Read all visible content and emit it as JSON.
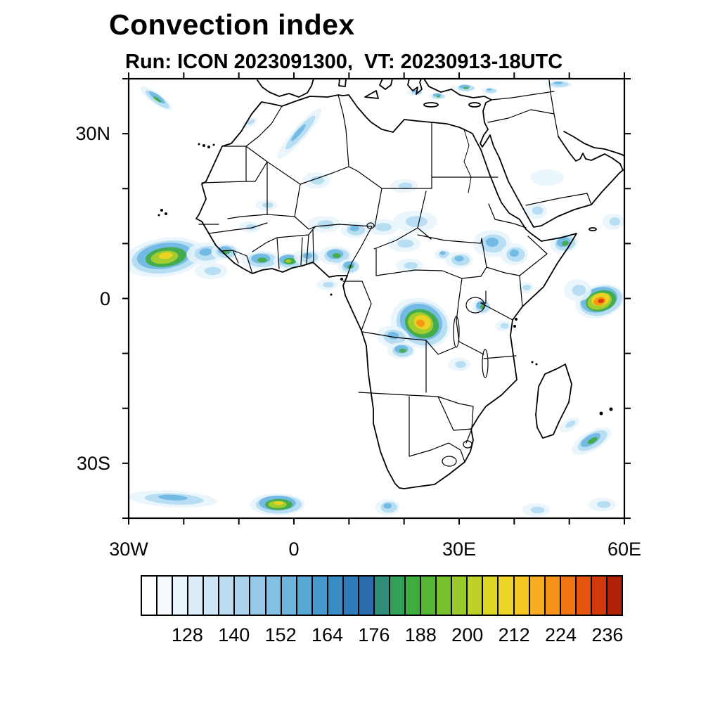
{
  "page": {
    "background": "#ffffff"
  },
  "header": {
    "title": "Convection index",
    "subtitle": "Run: ICON 2023091300,  VT: 20230913-18UTC"
  },
  "chart_data": {
    "type": "heatmap",
    "title": "Convection index",
    "model_run": "ICON 2023091300",
    "valid_time": "20230913-18UTC",
    "region": "Africa",
    "grid": "on-frame ticks every 10 degrees",
    "x_axis": {
      "min": -30,
      "max": 60,
      "tick_step": 10,
      "labeled_ticks": [
        {
          "value": -30,
          "label": "30W"
        },
        {
          "value": 0,
          "label": "0"
        },
        {
          "value": 30,
          "label": "30E"
        },
        {
          "value": 60,
          "label": "60E"
        }
      ]
    },
    "y_axis": {
      "min": -40,
      "max": 40,
      "tick_step": 10,
      "labeled_ticks": [
        {
          "value": 30,
          "label": "30N"
        },
        {
          "value": 0,
          "label": "0"
        },
        {
          "value": -30,
          "label": "30S"
        }
      ]
    },
    "colorbar": {
      "min": 116,
      "max": 240,
      "step": 4,
      "tick_values": [
        128,
        140,
        152,
        164,
        176,
        188,
        200,
        212,
        224,
        236
      ],
      "colors": [
        "#ffffff",
        "#f4fafd",
        "#e9f4fb",
        "#dcedf8",
        "#cde5f5",
        "#bcddf1",
        "#aad4ed",
        "#97cae8",
        "#83c0e3",
        "#6eb4dd",
        "#59a8d6",
        "#4799cd",
        "#3a8ac3",
        "#2f7bb7",
        "#2b6dab",
        "#2f8f7a",
        "#31a058",
        "#3dac41",
        "#57b636",
        "#78c02e",
        "#9bc929",
        "#bed226",
        "#dbd724",
        "#eed628",
        "#f5c624",
        "#f6ad1f",
        "#f4921a",
        "#ef7514",
        "#e6550f",
        "#d13a0b",
        "#b02208"
      ]
    },
    "intensity_palette": [
      "#e8f4fc",
      "#b4dcf2",
      "#6fb8e4",
      "#41ab47",
      "#a8cf2d",
      "#f0d322",
      "#f59314",
      "#d8310b"
    ],
    "convection_cells": [
      [
        -23.5,
        7.5,
        15,
        7,
        -8,
        6
      ],
      [
        -16,
        8.2,
        7,
        4,
        -5,
        3
      ],
      [
        -12.5,
        8.5,
        5,
        3,
        0,
        4
      ],
      [
        -15,
        5,
        6,
        3,
        0,
        2
      ],
      [
        -6,
        7,
        7,
        3.5,
        0,
        4
      ],
      [
        -1,
        6.8,
        5.5,
        3,
        0,
        5
      ],
      [
        2.5,
        7.5,
        5,
        3,
        0,
        3
      ],
      [
        7.5,
        7.8,
        6,
        3.5,
        0,
        4
      ],
      [
        10,
        5.8,
        4,
        2.8,
        0,
        4
      ],
      [
        5.5,
        13.5,
        6,
        3,
        0,
        2
      ],
      [
        11,
        12.5,
        5,
        3,
        0,
        3
      ],
      [
        16,
        13,
        6,
        3,
        0,
        2
      ],
      [
        20,
        10,
        6,
        3,
        0,
        2
      ],
      [
        22,
        14,
        8,
        4,
        0,
        2
      ],
      [
        20,
        20.5,
        5,
        2.5,
        0,
        2
      ],
      [
        4,
        21.5,
        5,
        3,
        0,
        2
      ],
      [
        -5,
        17,
        4,
        2,
        0,
        2
      ],
      [
        36,
        10,
        7,
        5,
        0,
        3
      ],
      [
        40,
        8,
        5,
        4,
        0,
        3
      ],
      [
        27,
        8,
        3,
        2,
        0,
        3
      ],
      [
        30,
        7,
        5,
        3,
        0,
        3
      ],
      [
        21,
        6,
        5,
        2.5,
        0,
        2
      ],
      [
        49,
        10,
        5,
        3.5,
        -10,
        4
      ],
      [
        44,
        16,
        4,
        3,
        0,
        2
      ],
      [
        46,
        22,
        6,
        3,
        0,
        1
      ],
      [
        23,
        -4.5,
        11,
        9,
        20,
        7
      ],
      [
        18,
        -7,
        6,
        4,
        10,
        3
      ],
      [
        19.5,
        -9.5,
        5,
        3,
        0,
        4
      ],
      [
        34,
        -1.5,
        3.5,
        3,
        0,
        4
      ],
      [
        42,
        2,
        3,
        2,
        0,
        2
      ],
      [
        38,
        -5,
        3,
        2,
        0,
        2
      ],
      [
        30,
        -12,
        4,
        2.5,
        0,
        2
      ],
      [
        55.5,
        -0.5,
        9,
        6,
        -15,
        8
      ],
      [
        51.5,
        1.5,
        5,
        4,
        0,
        2
      ],
      [
        58,
        14,
        4,
        3,
        0,
        2
      ],
      [
        54,
        -26,
        8,
        3.5,
        -30,
        4
      ],
      [
        50,
        -23,
        4,
        2,
        -30,
        2
      ],
      [
        -22,
        -36.5,
        16,
        3,
        3,
        3
      ],
      [
        -3,
        -37.5,
        10,
        4,
        0,
        6
      ],
      [
        17,
        -38,
        4.5,
        3,
        0,
        3
      ],
      [
        44,
        -38.5,
        5,
        2.5,
        0,
        2
      ],
      [
        56,
        -37.5,
        5,
        2.5,
        0,
        2
      ],
      [
        1,
        30,
        12,
        2.5,
        -49,
        3
      ],
      [
        -25,
        36.4,
        7,
        2,
        36,
        4
      ],
      [
        -8,
        32,
        3,
        1.5,
        -30,
        2
      ],
      [
        31,
        38.3,
        4,
        1.4,
        0,
        4
      ],
      [
        35.5,
        37.8,
        3,
        1.2,
        0,
        3
      ],
      [
        22,
        37.5,
        3,
        1.2,
        0,
        3
      ],
      [
        26,
        36.8,
        3,
        1.2,
        0,
        4
      ],
      [
        48,
        39,
        5,
        1.5,
        0,
        3
      ],
      [
        6,
        2.5,
        4,
        2,
        0,
        2
      ],
      [
        -8,
        13,
        4,
        2,
        0,
        2
      ]
    ]
  }
}
